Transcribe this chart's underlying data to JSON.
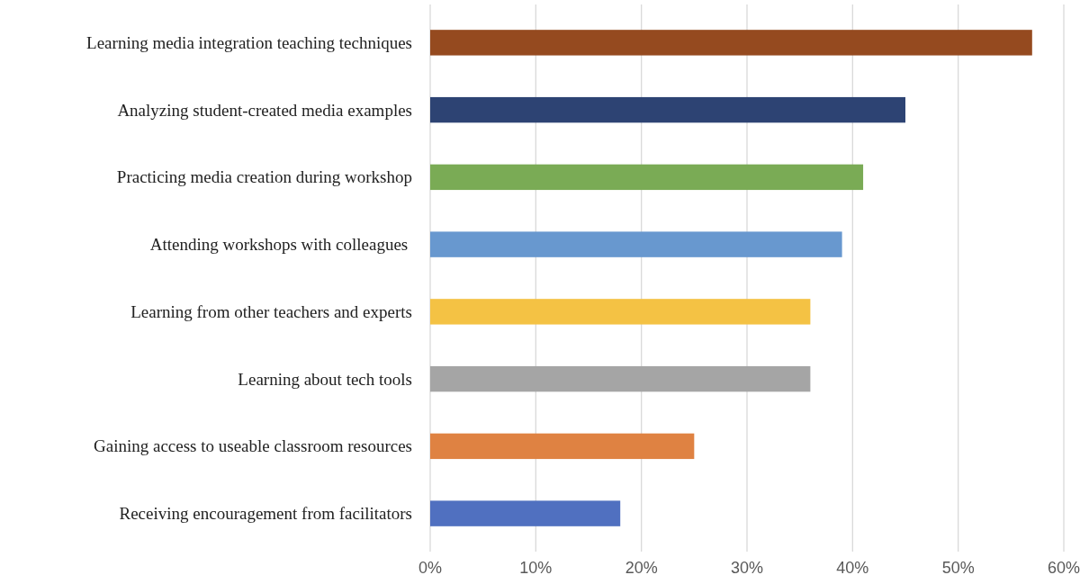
{
  "chart_data": {
    "type": "bar",
    "orientation": "horizontal",
    "categories": [
      "Learning media integration teaching techniques",
      "Analyzing student-created media examples",
      "Practicing media creation during workshop",
      "Attending workshops with colleagues ",
      "Learning from other teachers and experts",
      "Learning about tech tools",
      "Gaining access to useable classroom resources",
      "Receiving encouragement from facilitators"
    ],
    "values": [
      57,
      45,
      41,
      39,
      36,
      36,
      25,
      18
    ],
    "colors": [
      "#954a1f",
      "#2d4373",
      "#7aab55",
      "#6898cf",
      "#f4c244",
      "#a5a5a5",
      "#df8242",
      "#5070c0"
    ],
    "xlim": [
      0,
      60
    ],
    "xticks": [
      {
        "value": 0,
        "label": "0%"
      },
      {
        "value": 10,
        "label": "10%"
      },
      {
        "value": 20,
        "label": "20%"
      },
      {
        "value": 30,
        "label": "30%"
      },
      {
        "value": 40,
        "label": "40%"
      },
      {
        "value": 50,
        "label": "50%"
      },
      {
        "value": 60,
        "label": "60%"
      }
    ],
    "grid": "x"
  }
}
